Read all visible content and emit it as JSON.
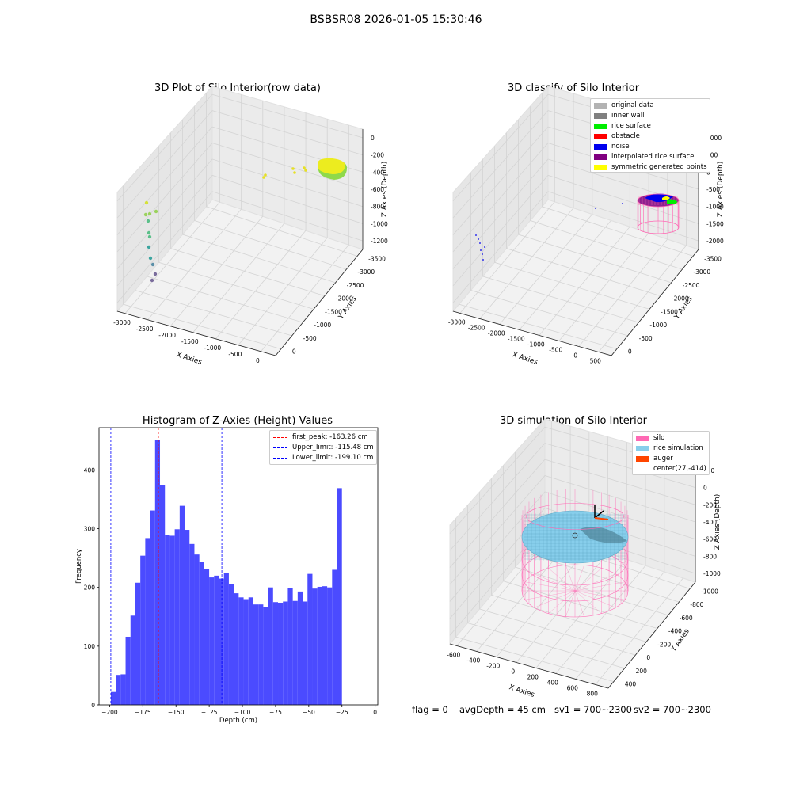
{
  "suptitle": "BSBSR08 2026-01-05 15:30:46",
  "panels": {
    "raw": {
      "title": "3D Plot of Silo Interior(row data)",
      "xlabel": "X Axies",
      "ylabel": "Y Axies",
      "zlabel": "Z Axies (Depth)",
      "xticks": [
        "-3000",
        "-2500",
        "-2000",
        "-1500",
        "-1000",
        "-500",
        "0"
      ],
      "yticks": [
        "0",
        "-500",
        "-1000",
        "-1500",
        "-2000",
        "-2500",
        "-3000",
        "-3500"
      ],
      "zticks": [
        "0",
        "-200",
        "-400",
        "-600",
        "-800",
        "-1000",
        "-1200"
      ]
    },
    "classify": {
      "title": "3D classify of Silo Interior",
      "xlabel": "X Axies",
      "ylabel": "Y Axies",
      "zlabel": "Z Axies (Depth)",
      "xticks": [
        "-3000",
        "-2500",
        "-2000",
        "-1500",
        "-1000",
        "-500",
        "0",
        "500"
      ],
      "yticks": [
        "0",
        "-500",
        "-1000",
        "-1500",
        "-2000",
        "-2500",
        "-3000",
        "-3500"
      ],
      "zticks": [
        "1000",
        "500",
        "0",
        "-500",
        "-1000",
        "-1500",
        "-2000"
      ],
      "legend": [
        {
          "label": "original data",
          "color": "#b3b3b3"
        },
        {
          "label": "inner wall",
          "color": "#808080"
        },
        {
          "label": "rice surface",
          "color": "#00ee00"
        },
        {
          "label": "obstacle",
          "color": "#ff0000"
        },
        {
          "label": "noise",
          "color": "#0000ee"
        },
        {
          "label": "interpolated rice surface",
          "color": "#800080"
        },
        {
          "label": "symmetric generated points",
          "color": "#ffff00"
        }
      ]
    },
    "sim": {
      "title": "3D simulation of Silo Interior",
      "xlabel": "X Axies",
      "ylabel": "Y Axies",
      "zlabel": "Z Axies (Depth)",
      "xticks": [
        "-600",
        "-400",
        "-200",
        "0",
        "200",
        "400",
        "600",
        "800"
      ],
      "yticks": [
        "400",
        "200",
        "0",
        "-200",
        "-400",
        "-600",
        "-800",
        "-1000"
      ],
      "zticks": [
        "200",
        "0",
        "-200",
        "-400",
        "-600",
        "-800",
        "-1000"
      ],
      "legend": [
        {
          "label": "silo",
          "color": "#ff69b4"
        },
        {
          "label": "rice simulation",
          "color": "#87ceeb"
        },
        {
          "label": "auger",
          "color": "#ff4500"
        },
        {
          "label": "center(27,-414)",
          "color": "#ffffff"
        }
      ]
    }
  },
  "chart_data": {
    "type": "bar",
    "title": "Histogram of Z-Axies (Height) Values",
    "xlabel": "Depth (cm)",
    "ylabel": "Frequency",
    "xlim": [
      -208,
      2
    ],
    "ylim": [
      0,
      472
    ],
    "xticks": [
      -200,
      -175,
      -150,
      -125,
      -100,
      -75,
      -50,
      -25,
      0
    ],
    "yticks": [
      0,
      100,
      200,
      300,
      400
    ],
    "bin_start": -199.1,
    "bin_width": 3.704,
    "counts": [
      22,
      51,
      52,
      116,
      152,
      208,
      254,
      284,
      331,
      451,
      374,
      289,
      288,
      299,
      339,
      298,
      274,
      256,
      244,
      231,
      217,
      220,
      215,
      224,
      205,
      190,
      183,
      180,
      183,
      171,
      171,
      166,
      200,
      175,
      174,
      176,
      199,
      177,
      193,
      176,
      223,
      198,
      201,
      202,
      200,
      230,
      369
    ],
    "vlines": [
      {
        "label": "first_peak: -163.26 cm",
        "x": -163.26,
        "color": "#ff0000"
      },
      {
        "label": "Upper_limit: -115.48 cm",
        "x": -115.48,
        "color": "#0000ff"
      },
      {
        "label": "Lower_limit: -199.10 cm",
        "x": -199.1,
        "color": "#0000ff"
      }
    ],
    "bar_color": "#4b4bff"
  },
  "footer": {
    "flag": "flag = 0",
    "avg_depth": "avgDepth = 45 cm",
    "sv1": "sv1 = 700~2300",
    "sv2": "sv2 = 700~2300"
  }
}
